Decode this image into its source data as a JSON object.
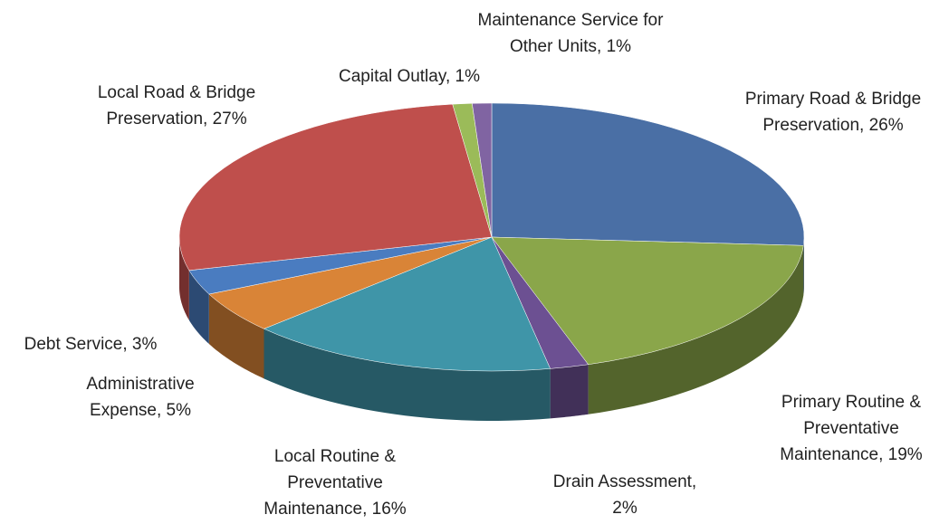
{
  "chart_data": {
    "type": "pie3d",
    "labels": [
      "Primary Road & Bridge Preservation, 26%",
      "Primary Routine & Preventative Maintenance, 19%",
      "Drain Assessment, 2%",
      "Local Routine & Preventative Maintenance, 16%",
      "Administrative Expense, 5%",
      "Debt Service, 3%",
      "Local Road & Bridge Preservation, 27%",
      "Capital Outlay, 1%",
      "Maintenance Service for Other Units, 1%"
    ],
    "values": [
      26,
      19,
      2,
      16,
      5,
      3,
      27,
      1,
      1
    ],
    "colors": [
      "#4a6fa5",
      "#8aa64a",
      "#6c5092",
      "#3f95a8",
      "#d98437",
      "#4a7cc0",
      "#bf4f4c",
      "#9bbb59",
      "#8064a2"
    ]
  }
}
